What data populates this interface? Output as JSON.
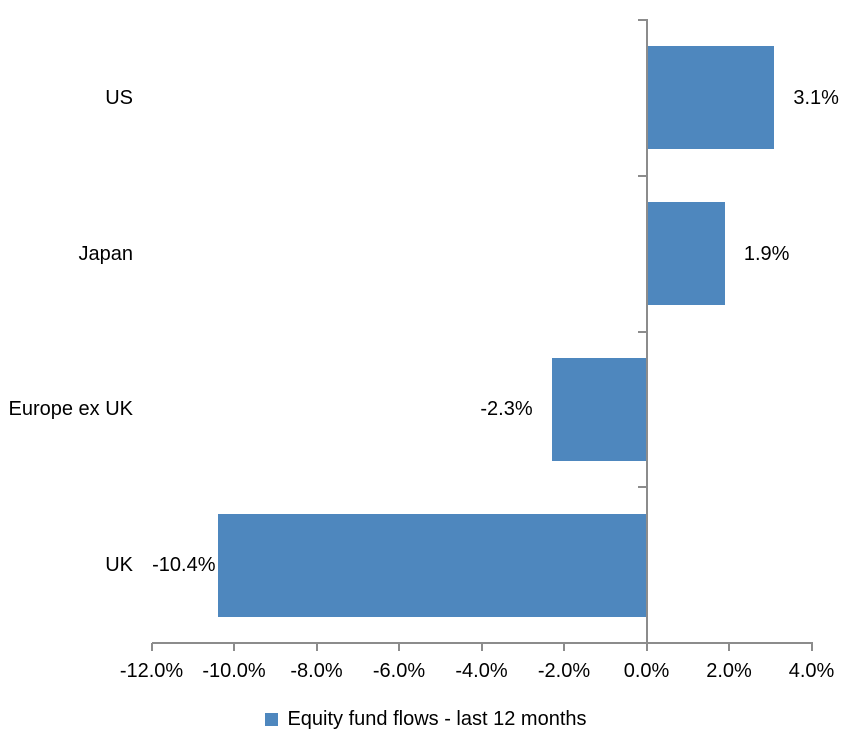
{
  "chart_data": {
    "type": "bar",
    "orientation": "horizontal",
    "title": "",
    "categories": [
      "US",
      "Japan",
      "Europe ex UK",
      "UK"
    ],
    "values": [
      3.1,
      1.9,
      -2.3,
      -10.4
    ],
    "data_labels": [
      "3.1%",
      "1.9%",
      "-2.3%",
      "-10.4%"
    ],
    "series_name": "Equity fund flows - last 12 months",
    "xlim": [
      -12,
      4
    ],
    "x_tick_values": [
      -12,
      -10,
      -8,
      -6,
      -4,
      -2,
      0,
      2,
      4
    ],
    "x_tick_labels": [
      "-12.0%",
      "-10.0%",
      "-8.0%",
      "-6.0%",
      "-4.0%",
      "-2.0%",
      "0.0%",
      "2.0%",
      "4.0%"
    ],
    "grid": false,
    "legend_position": "bottom",
    "colors": {
      "bar": "#4E87BE",
      "axis": "#8C8C8C",
      "text": "#000000",
      "background": "#FFFFFF"
    }
  },
  "legend": {
    "label": "Equity fund flows - last 12 months"
  }
}
